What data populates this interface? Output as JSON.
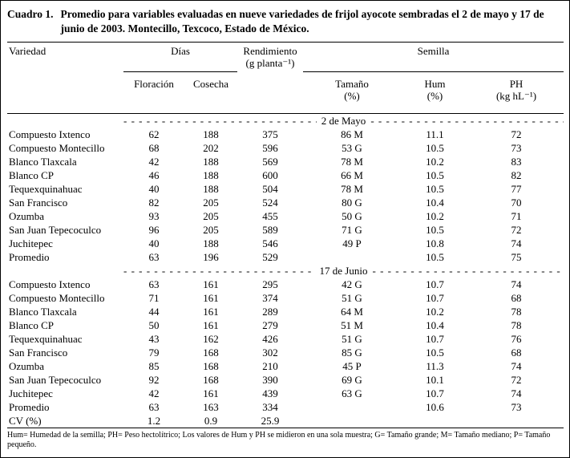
{
  "page": {
    "caption_label": "Cuadro 1.",
    "caption_text": "Promedio para variables evaluadas en nueve variedades de frijol ayocote sembradas el 2 de mayo y 17 de junio de 2003. Montecillo, Texcoco, Estado de México.",
    "footnote": "Hum= Humedad de la semilla; PH= Peso hectolítrico; Los valores de Hum y PH se midieron en una sola muestra; G= Tamaño grande; M= Tamaño mediano; P= Tamaño pequeño."
  },
  "table": {
    "header": {
      "variedad": "Variedad",
      "dias": "Días",
      "floracion": "Floración",
      "cosecha": "Cosecha",
      "rendimiento": "Rendimiento",
      "rendimiento_unit": "(g planta⁻¹)",
      "semilla": "Semilla",
      "tamano": "Tamaño",
      "tamano_unit": "(%)",
      "hum": "Hum",
      "hum_unit": "(%)",
      "ph": "PH",
      "ph_unit": "(kg hL⁻¹)"
    },
    "dash_run": "- - - - - - - - - - - - - - - - - - - - - - - - - - - - - - - - - - - - - - - - - - - - - - - - - - - - - - - - - - - -",
    "sections": [
      {
        "label": "2 de Mayo",
        "rows": [
          [
            "Compuesto Ixtenco",
            "62",
            "188",
            "375",
            "86 M",
            "11.1",
            "72"
          ],
          [
            "Compuesto Montecillo",
            "68",
            "202",
            "596",
            "53 G",
            "10.5",
            "73"
          ],
          [
            "Blanco Tlaxcala",
            "42",
            "188",
            "569",
            "78 M",
            "10.2",
            "83"
          ],
          [
            "Blanco CP",
            "46",
            "188",
            "600",
            "66 M",
            "10.5",
            "82"
          ],
          [
            "Tequexquinahuac",
            "40",
            "188",
            "504",
            "78 M",
            "10.5",
            "77"
          ],
          [
            "San Francisco",
            "82",
            "205",
            "524",
            "80 G",
            "10.4",
            "70"
          ],
          [
            "Ozumba",
            "93",
            "205",
            "455",
            "50 G",
            "10.2",
            "71"
          ],
          [
            "San Juan Tepecoculco",
            "96",
            "205",
            "589",
            "71 G",
            "10.5",
            "72"
          ],
          [
            "Juchitepec",
            "40",
            "188",
            "546",
            "49 P",
            "10.8",
            "74"
          ],
          [
            "Promedio",
            "63",
            "196",
            "529",
            "",
            "10.5",
            "75"
          ]
        ]
      },
      {
        "label": "17 de Junio",
        "rows": [
          [
            "Compuesto Ixtenco",
            "63",
            "161",
            "295",
            "42 G",
            "10.7",
            "74"
          ],
          [
            "Compuesto Montecillo",
            "71",
            "161",
            "374",
            "51 G",
            "10.7",
            "68"
          ],
          [
            "Blanco Tlaxcala",
            "44",
            "161",
            "289",
            "64 M",
            "10.2",
            "78"
          ],
          [
            "Blanco CP",
            "50",
            "161",
            "279",
            "51 M",
            "10.4",
            "78"
          ],
          [
            "Tequexquinahuac",
            "43",
            "162",
            "426",
            "51 G",
            "10.7",
            "76"
          ],
          [
            "San Francisco",
            "79",
            "168",
            "302",
            "85 G",
            "10.5",
            "68"
          ],
          [
            "Ozumba",
            "85",
            "168",
            "210",
            "45 P",
            "11.3",
            "74"
          ],
          [
            "San Juan Tepecoculco",
            "92",
            "168",
            "390",
            "69 G",
            "10.1",
            "72"
          ],
          [
            "Juchitepec",
            "42",
            "161",
            "439",
            "63 G",
            "10.7",
            "74"
          ],
          [
            "Promedio",
            "63",
            "163",
            "334",
            "",
            "10.6",
            "73"
          ],
          [
            "CV (%)",
            "1.2",
            "0.9",
            "25.9",
            "",
            "",
            ""
          ]
        ]
      }
    ]
  }
}
